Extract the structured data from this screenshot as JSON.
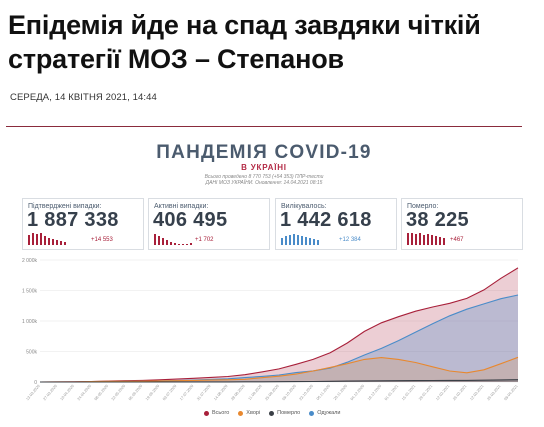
{
  "article": {
    "headline": "Епідемія йде на спад завдяки чіткій стратегії МОЗ – Степанов",
    "date": "СЕРЕДА, 14 КВІТНЯ 2021, 14:44"
  },
  "infographic": {
    "title": "ПАНДЕМІЯ COVID-19",
    "subtitle": "В УКРАЇНІ",
    "note_line1": "Всього проведено 8 770 753 (+54 353) ПЛР-тести",
    "note_line2": "ДАНІ МОЗ УКРАЇНИ. Оновлення: 14.04.2021 08:15",
    "stats": [
      {
        "label": "Підтверджені випадки:",
        "value": "1 887 338",
        "delta": "+14 553",
        "color": "#a8203a"
      },
      {
        "label": "Активні випадки:",
        "value": "406 495",
        "delta": "+1 702",
        "color": "#a8203a"
      },
      {
        "label": "Вилікувалось:",
        "value": "1 442 618",
        "delta": "+12 384",
        "color": "#4a8cc9"
      },
      {
        "label": "Померло:",
        "value": "38 225",
        "delta": "+467",
        "color": "#a8203a"
      }
    ]
  },
  "chart_data": {
    "type": "area",
    "title": "",
    "xlabel": "",
    "ylabel": "",
    "ylim": [
      0,
      2000000
    ],
    "y_ticks": [
      "2 000k",
      "1 500k",
      "1 000k",
      "500k",
      "0"
    ],
    "x_labels": [
      "13.03.2020",
      "27.03.2020",
      "10.04.2020",
      "24.04.2020",
      "08.05.2020",
      "22.05.2020",
      "05.06.2020",
      "19.06.2020",
      "03.07.2020",
      "17.07.2020",
      "31.07.2020",
      "14.08.2020",
      "28.08.2020",
      "11.09.2020",
      "25.09.2020",
      "09.10.2020",
      "23.10.2020",
      "06.11.2020",
      "20.11.2020",
      "04.12.2020",
      "18.12.2020",
      "01.01.2021",
      "15.01.2021",
      "29.01.2021",
      "12.02.2021",
      "26.02.2021",
      "12.03.2021",
      "26.03.2021",
      "09.04.2021"
    ],
    "series": [
      {
        "name": "Всього",
        "color": "#a8203a",
        "values": [
          3,
          1000,
          2500,
          9000,
          16000,
          21000,
          27000,
          36000,
          48000,
          60000,
          75000,
          90000,
          120000,
          165000,
          215000,
          290000,
          370000,
          480000,
          640000,
          830000,
          970000,
          1070000,
          1160000,
          1230000,
          1290000,
          1370000,
          1510000,
          1700000,
          1870000
        ]
      },
      {
        "name": "Хворі",
        "color": "#e8882f",
        "values": [
          3,
          950,
          2300,
          7500,
          11000,
          11500,
          12500,
          17500,
          22000,
          26500,
          31000,
          36000,
          45000,
          70000,
          95000,
          130000,
          180000,
          240000,
          300000,
          370000,
          400000,
          370000,
          320000,
          250000,
          180000,
          150000,
          200000,
          300000,
          405000
        ]
      },
      {
        "name": "Померло",
        "color": "#3a3f46",
        "values": [
          0,
          20,
          70,
          250,
          430,
          600,
          780,
          980,
          1200,
          1450,
          1750,
          2100,
          2600,
          3500,
          4700,
          6500,
          8700,
          11500,
          15000,
          17500,
          19600,
          21000,
          22500,
          24000,
          25500,
          27000,
          30000,
          34000,
          38000
        ]
      },
      {
        "name": "Одужали",
        "color": "#4a8cc9",
        "values": [
          0,
          10,
          130,
          1250,
          4600,
          9100,
          13800,
          17500,
          24800,
          32000,
          42200,
          51900,
          72400,
          91500,
          115300,
          153500,
          181300,
          228500,
          325000,
          442500,
          550400,
          679000,
          817500,
          956000,
          1084500,
          1193000,
          1280000,
          1366000,
          1427000
        ]
      }
    ],
    "grid": true,
    "legend": "bottom"
  }
}
